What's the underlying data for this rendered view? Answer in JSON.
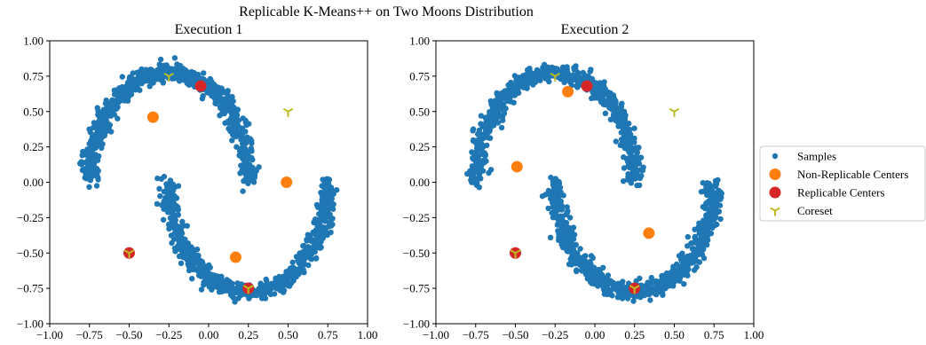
{
  "figure": {
    "suptitle": "Replicable K-Means++ on Two Moons Distribution"
  },
  "legend": {
    "placement": "right",
    "entries": [
      {
        "label": "Samples",
        "marker": "dot",
        "color": "#1f77b4"
      },
      {
        "label": "Non-Replicable Centers",
        "marker": "circle",
        "color": "#ff7f0e"
      },
      {
        "label": "Replicable Centers",
        "marker": "circle",
        "color": "#d62728"
      },
      {
        "label": "Coreset",
        "marker": "tri-down",
        "color": "#bcbd22"
      }
    ]
  },
  "chart_data": [
    {
      "type": "scatter",
      "title": "Execution 1",
      "xlabel": "",
      "ylabel": "",
      "xlim": [
        -1.0,
        1.0
      ],
      "ylim": [
        -1.0,
        1.0
      ],
      "xticks": [
        "−1.00",
        "−0.75",
        "−0.50",
        "−0.25",
        "0.00",
        "0.25",
        "0.50",
        "0.75",
        "1.00"
      ],
      "yticks": [
        "1.00",
        "0.75",
        "0.50",
        "0.25",
        "0.00",
        "−0.25",
        "−0.50",
        "−0.75",
        "−1.00"
      ],
      "grid": false,
      "samples": {
        "distribution": "two moons, scaled to x in [-0.75, 0.75], y in [-0.75, 0.75]",
        "upper_moon": {
          "center": [
            -0.25,
            0.0
          ],
          "radius": 0.5,
          "arc": "upper"
        },
        "lower_moon": {
          "center": [
            0.25,
            -0.25
          ],
          "radius": 0.5,
          "arc": "lower"
        }
      },
      "series": [
        {
          "name": "Non-Replicable Centers",
          "points": [
            [
              -0.35,
              0.46
            ],
            [
              0.49,
              0.0
            ],
            [
              0.17,
              -0.53
            ]
          ]
        },
        {
          "name": "Replicable Centers",
          "points": [
            [
              -0.05,
              0.68
            ],
            [
              -0.5,
              -0.5
            ],
            [
              0.25,
              -0.75
            ]
          ]
        },
        {
          "name": "Coreset",
          "points": [
            [
              -0.25,
              0.75
            ],
            [
              0.5,
              0.5
            ],
            [
              -0.5,
              -0.5
            ],
            [
              0.25,
              -0.75
            ]
          ]
        }
      ]
    },
    {
      "type": "scatter",
      "title": "Execution 2",
      "xlabel": "",
      "ylabel": "",
      "xlim": [
        -1.0,
        1.0
      ],
      "ylim": [
        -1.0,
        1.0
      ],
      "xticks": [
        "−1.00",
        "−0.75",
        "−0.50",
        "−0.25",
        "0.00",
        "0.25",
        "0.50",
        "0.75",
        "1.00"
      ],
      "yticks": [
        "1.00",
        "0.75",
        "0.50",
        "0.25",
        "0.00",
        "−0.25",
        "−0.50",
        "−0.75",
        "−1.00"
      ],
      "grid": false,
      "samples": {
        "distribution": "two moons, scaled to x in [-0.75, 0.75], y in [-0.75, 0.75]",
        "upper_moon": {
          "center": [
            -0.25,
            0.0
          ],
          "radius": 0.5,
          "arc": "upper"
        },
        "lower_moon": {
          "center": [
            0.25,
            -0.25
          ],
          "radius": 0.5,
          "arc": "lower"
        }
      },
      "series": [
        {
          "name": "Non-Replicable Centers",
          "points": [
            [
              -0.17,
              0.64
            ],
            [
              -0.49,
              0.11
            ],
            [
              0.34,
              -0.36
            ]
          ]
        },
        {
          "name": "Replicable Centers",
          "points": [
            [
              -0.05,
              0.68
            ],
            [
              -0.5,
              -0.5
            ],
            [
              0.25,
              -0.75
            ]
          ]
        },
        {
          "name": "Coreset",
          "points": [
            [
              -0.25,
              0.75
            ],
            [
              0.5,
              0.5
            ],
            [
              -0.5,
              -0.5
            ],
            [
              0.25,
              -0.75
            ]
          ]
        }
      ]
    }
  ]
}
